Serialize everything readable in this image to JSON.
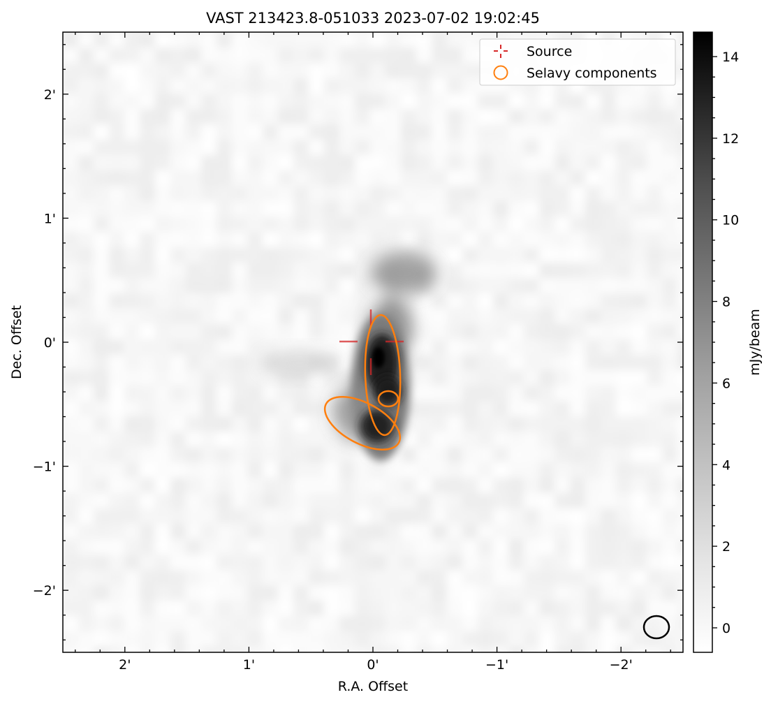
{
  "figure": {
    "title": "VAST 213423.8-051033 2023-07-02 19:02:45",
    "x_axis": {
      "label": "R.A. Offset",
      "ticks": [
        {
          "value": 2,
          "label": "2'"
        },
        {
          "value": 1,
          "label": "1'"
        },
        {
          "value": 0,
          "label": "0'"
        },
        {
          "value": -1,
          "label": "−1'"
        },
        {
          "value": -2,
          "label": "−2'"
        }
      ],
      "range_arcmin": [
        2.5,
        -2.5
      ],
      "inverted": true
    },
    "y_axis": {
      "label": "Dec. Offset",
      "ticks": [
        {
          "value": 2,
          "label": "2'"
        },
        {
          "value": 1,
          "label": "1'"
        },
        {
          "value": 0,
          "label": "0'"
        },
        {
          "value": -1,
          "label": "−1'"
        },
        {
          "value": -2,
          "label": "−2'"
        }
      ],
      "range_arcmin": [
        -2.5,
        2.5
      ]
    },
    "colorbar": {
      "label": "mJy/beam",
      "cmap": "gray_r",
      "range": [
        -0.6,
        14.6
      ],
      "ticks": [
        {
          "value": 0,
          "label": "0"
        },
        {
          "value": 2,
          "label": "2"
        },
        {
          "value": 4,
          "label": "4"
        },
        {
          "value": 6,
          "label": "6"
        },
        {
          "value": 8,
          "label": "8"
        },
        {
          "value": 10,
          "label": "10"
        },
        {
          "value": 12,
          "label": "12"
        },
        {
          "value": 14,
          "label": "14"
        }
      ]
    },
    "legend": {
      "position": "upper right",
      "entries": [
        {
          "label": "Source",
          "marker": "dashed-crosshair",
          "color": "#d62728"
        },
        {
          "label": "Selavy components",
          "marker": "open-circle",
          "color": "#ff7f0e"
        }
      ]
    },
    "overlays": {
      "source_color": "#d62728",
      "component_color": "#ff7f0e",
      "beam_color": "#000000"
    },
    "colors": {
      "source": "#d62728",
      "selavy": "#ff7f0e",
      "image_background": "#f3f3f3"
    }
  }
}
